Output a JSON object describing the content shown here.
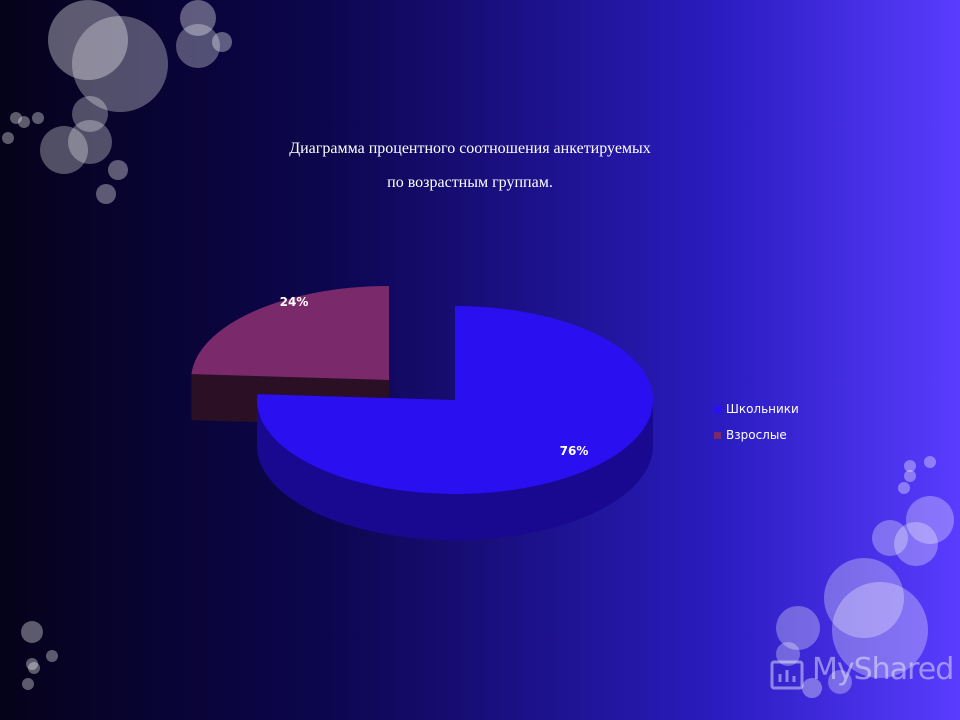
{
  "slide": {
    "title_line1": "Диаграмма процентного соотношения анкетируемых",
    "title_line2": "по возрастным группам.",
    "watermark": "MyShared"
  },
  "chart_data": {
    "type": "pie",
    "style": "3d-exploded",
    "title": "",
    "categories": [
      "Школьники",
      "Взрослые"
    ],
    "values": [
      76,
      24
    ],
    "data_labels": [
      "76%",
      "24%"
    ],
    "colors": [
      "#2a0ff0",
      "#7a2a6a"
    ],
    "legend_position": "right"
  }
}
